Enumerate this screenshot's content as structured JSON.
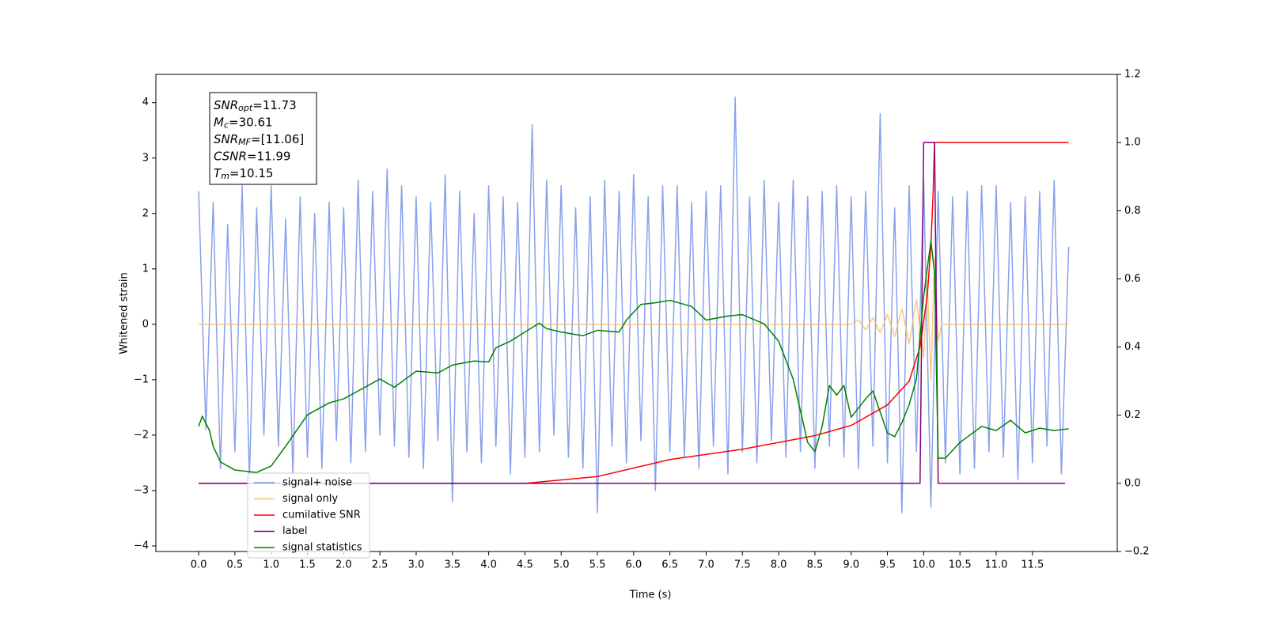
{
  "chart_data": {
    "type": "line",
    "xlabel": "Time (s)",
    "ylabel": "Whitened strain",
    "xlim": [
      -0.59,
      12.67
    ],
    "ylim": [
      -4.1,
      4.51
    ],
    "y2lim": [
      -0.2,
      1.2
    ],
    "xticks": [
      {
        "value": 0,
        "label": "0.0"
      },
      0.5,
      {
        "value": 1,
        "label": "1.0"
      },
      1.5,
      {
        "value": 2,
        "label": "2.0"
      },
      2.5,
      {
        "value": 3,
        "label": "3.0"
      },
      3.5,
      {
        "value": 4,
        "label": "4.0"
      },
      4.5,
      {
        "value": 5,
        "label": "5.0"
      },
      5.5,
      {
        "value": 6,
        "label": "6.0"
      },
      6.5,
      {
        "value": 7,
        "label": "7.0"
      },
      7.5,
      {
        "value": 8,
        "label": "8.0"
      },
      8.5,
      {
        "value": 9,
        "label": "9.0"
      },
      9.5,
      {
        "value": 10,
        "label": "10.0"
      },
      10.5,
      {
        "value": 11,
        "label": "11.0"
      },
      11.5
    ],
    "yticks": [
      {
        "value": -4,
        "label": "−4"
      },
      {
        "value": -3,
        "label": "−3"
      },
      {
        "value": -2,
        "label": "−2"
      },
      {
        "value": -1,
        "label": "−1"
      },
      0,
      1,
      2,
      3,
      4
    ],
    "y2ticks": [
      {
        "value": -0.2,
        "label": "−0.2"
      },
      {
        "value": 0,
        "label": "0.0"
      },
      0.2,
      0.4,
      0.6,
      0.8,
      {
        "value": 1,
        "label": "1.0"
      },
      1.2
    ],
    "legend": "lower left",
    "annotations": [
      {
        "name": "SNR",
        "sub": "opt",
        "text": "=11.73"
      },
      {
        "name": "M",
        "sub": "c",
        "text": "=30.61"
      },
      {
        "name": "SNR",
        "sub": "MF",
        "text": "=[11.06]"
      },
      {
        "name": "CSNR",
        "sub": "",
        "text": "=11.99"
      },
      {
        "name": "T",
        "sub": "m",
        "text": "=10.15"
      }
    ],
    "series": [
      {
        "name": "signal+ noise",
        "color": "#7490e7",
        "axis": "y",
        "x": [
          0,
          0.1,
          0.2,
          0.3,
          0.4,
          0.5,
          0.6,
          0.7,
          0.8,
          0.9,
          1,
          1.1,
          1.2,
          1.3,
          1.4,
          1.5,
          1.6,
          1.7,
          1.8,
          1.9,
          2,
          2.1,
          2.2,
          2.3,
          2.4,
          2.5,
          2.6,
          2.7,
          2.8,
          2.9,
          3,
          3.1,
          3.2,
          3.3,
          3.4,
          3.5,
          3.6,
          3.7,
          3.8,
          3.9,
          4,
          4.1,
          4.2,
          4.3,
          4.4,
          4.5,
          4.6,
          4.7,
          4.8,
          4.9,
          5,
          5.1,
          5.2,
          5.3,
          5.4,
          5.5,
          5.6,
          5.7,
          5.8,
          5.9,
          6,
          6.1,
          6.2,
          6.3,
          6.4,
          6.5,
          6.6,
          6.7,
          6.8,
          6.9,
          7,
          7.1,
          7.2,
          7.3,
          7.4,
          7.5,
          7.6,
          7.7,
          7.8,
          7.9,
          8,
          8.1,
          8.2,
          8.3,
          8.4,
          8.5,
          8.6,
          8.7,
          8.8,
          8.9,
          9,
          9.1,
          9.2,
          9.3,
          9.4,
          9.5,
          9.6,
          9.7,
          9.8,
          9.9,
          10,
          10.1,
          10.2,
          10.3,
          10.4,
          10.5,
          10.6,
          10.7,
          10.8,
          10.9,
          11,
          11.1,
          11.2,
          11.3,
          11.4,
          11.5,
          11.6,
          11.7,
          11.8,
          11.9,
          12
        ],
        "values": [
          2.4,
          -1.9,
          2.2,
          -2.6,
          1.8,
          -2.3,
          2.5,
          -2.8,
          2.1,
          -2.0,
          2.5,
          -2.2,
          1.9,
          -2.7,
          2.3,
          -2.4,
          2.0,
          -2.6,
          2.2,
          -2.1,
          2.1,
          -2.5,
          2.6,
          -2.3,
          2.4,
          -2.0,
          2.8,
          -2.2,
          2.5,
          -2.4,
          2.3,
          -2.6,
          2.2,
          -2.1,
          2.7,
          -3.2,
          2.4,
          -2.3,
          2.0,
          -2.5,
          2.5,
          -2.2,
          2.3,
          -2.7,
          2.2,
          -2.4,
          3.6,
          -2.3,
          2.6,
          -2.0,
          2.5,
          -2.4,
          2.1,
          -2.6,
          2.3,
          -3.4,
          2.6,
          -2.2,
          2.4,
          -2.5,
          2.7,
          -2.1,
          2.3,
          -3.0,
          2.5,
          -2.3,
          2.5,
          -2.4,
          2.2,
          -2.6,
          2.4,
          -2.2,
          2.5,
          -2.7,
          4.1,
          -2.3,
          2.3,
          -2.5,
          2.6,
          -2.1,
          2.2,
          -2.4,
          2.6,
          -2.3,
          2.3,
          -2.6,
          2.4,
          -2.2,
          2.5,
          -2.4,
          2.3,
          -2.6,
          2.4,
          -2.2,
          3.8,
          -2.5,
          2.1,
          -3.4,
          2.5,
          -2.3,
          2.6,
          -3.3,
          2.4,
          -2.5,
          2.3,
          -2.7,
          2.4,
          -2.6,
          2.5,
          -2.3,
          2.5,
          -2.4,
          2.2,
          -2.8,
          2.3,
          -2.5,
          2.4,
          -2.2,
          2.6,
          -2.7,
          1.4
        ]
      },
      {
        "name": "signal only",
        "color": "#f7c16b",
        "axis": "y",
        "x": [
          0,
          9,
          9.1,
          9.2,
          9.3,
          9.4,
          9.5,
          9.6,
          9.7,
          9.8,
          9.9,
          10,
          10.05,
          10.1,
          10.15,
          10.2,
          10.25,
          12
        ],
        "values": [
          0,
          0,
          0.08,
          -0.1,
          0.12,
          -0.15,
          0.18,
          -0.22,
          0.28,
          -0.35,
          0.45,
          -0.6,
          0.8,
          -1.0,
          1.2,
          -0.3,
          0,
          0
        ]
      },
      {
        "name": "cumilative SNR",
        "color": "#ff0000",
        "axis": "y2",
        "x": [
          0,
          4.5,
          5.5,
          6.5,
          7.5,
          8.5,
          9,
          9.5,
          9.8,
          9.95,
          10.05,
          10.1,
          10.13,
          10.15,
          12
        ],
        "values": [
          0,
          0,
          0.02,
          0.07,
          0.1,
          0.14,
          0.17,
          0.23,
          0.3,
          0.4,
          0.55,
          0.7,
          0.85,
          1,
          1
        ]
      },
      {
        "name": "label",
        "color": "#800080",
        "axis": "y2",
        "x": [
          0,
          9.95,
          10,
          10.15,
          10.2,
          11.95
        ],
        "values": [
          0,
          0,
          1,
          1,
          0,
          0
        ]
      },
      {
        "name": "signal statistics",
        "color": "#008000",
        "axis": "y2",
        "x": [
          0,
          0.05,
          0.15,
          0.2,
          0.3,
          0.5,
          0.8,
          1,
          1.2,
          1.5,
          1.8,
          2,
          2.2,
          2.5,
          2.7,
          3,
          3.3,
          3.5,
          3.8,
          4,
          4.1,
          4.3,
          4.5,
          4.7,
          4.8,
          5,
          5.3,
          5.5,
          5.8,
          5.9,
          6.1,
          6.3,
          6.5,
          6.8,
          7,
          7.3,
          7.5,
          7.8,
          8,
          8.2,
          8.4,
          8.5,
          8.6,
          8.7,
          8.8,
          8.9,
          9,
          9.2,
          9.3,
          9.5,
          9.6,
          9.7,
          9.8,
          9.9,
          10,
          10.1,
          10.15,
          10.2,
          10.3,
          10.5,
          10.8,
          11,
          11.2,
          11.4,
          11.6,
          11.8,
          12
        ],
        "values": [
          0.167,
          0.197,
          0.155,
          0.109,
          0.063,
          0.039,
          0.032,
          0.051,
          0.109,
          0.201,
          0.236,
          0.248,
          0.271,
          0.306,
          0.282,
          0.329,
          0.324,
          0.347,
          0.359,
          0.356,
          0.398,
          0.417,
          0.444,
          0.47,
          0.454,
          0.444,
          0.433,
          0.449,
          0.444,
          0.479,
          0.525,
          0.53,
          0.537,
          0.519,
          0.479,
          0.491,
          0.495,
          0.468,
          0.417,
          0.306,
          0.12,
          0.093,
          0.167,
          0.287,
          0.259,
          0.287,
          0.194,
          0.248,
          0.271,
          0.148,
          0.137,
          0.178,
          0.231,
          0.306,
          0.549,
          0.711,
          0.618,
          0.074,
          0.074,
          0.12,
          0.167,
          0.155,
          0.185,
          0.148,
          0.162,
          0.155,
          0.16
        ]
      }
    ]
  }
}
